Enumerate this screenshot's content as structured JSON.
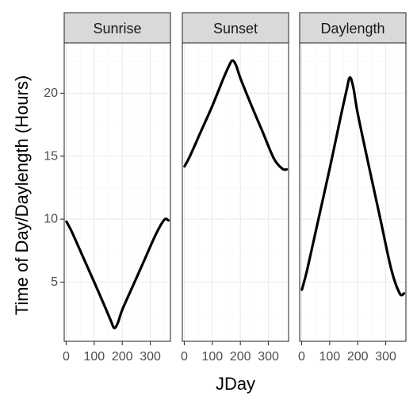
{
  "chart_data": {
    "type": "line",
    "layout": "facet",
    "xlabel": "JDay",
    "ylabel": "Time of Day/Daylength (Hours)",
    "xlim": [
      -7,
      372
    ],
    "ylim": [
      0.3,
      24
    ],
    "x_ticks": [
      0,
      100,
      200,
      300
    ],
    "x_tick_labels": [
      "0",
      "100",
      "200",
      "300"
    ],
    "y_ticks": [
      5,
      10,
      15,
      20
    ],
    "y_tick_labels": [
      "5",
      "10",
      "15",
      "20"
    ],
    "grid": true,
    "panels": [
      {
        "strip": "Sunrise",
        "series": [
          {
            "x": [
              1,
              20,
              60,
              100,
              140,
              160,
              172,
              185,
              200,
              240,
              280,
              320,
              350,
              365
            ],
            "y": [
              9.8,
              9.0,
              7.0,
              5.0,
              2.95,
              1.9,
              1.35,
              1.8,
              2.8,
              4.8,
              6.8,
              8.8,
              9.95,
              9.9
            ]
          }
        ]
      },
      {
        "strip": "Sunset",
        "series": [
          {
            "x": [
              1,
              20,
              60,
              100,
              140,
              160,
              172,
              185,
              200,
              240,
              280,
              320,
              350,
              365
            ],
            "y": [
              14.2,
              15.0,
              17.0,
              19.0,
              21.2,
              22.2,
              22.6,
              22.2,
              21.2,
              19.0,
              16.9,
              14.8,
              14.0,
              13.95
            ]
          }
        ]
      },
      {
        "strip": "Daylength",
        "series": [
          {
            "x": [
              1,
              20,
              60,
              100,
              140,
              160,
              172,
              185,
              200,
              240,
              280,
              320,
              350,
              365
            ],
            "y": [
              4.4,
              6.0,
              10.0,
              14.0,
              18.2,
              20.2,
              21.25,
              20.4,
              18.4,
              14.2,
              10.1,
              6.0,
              4.1,
              4.1
            ]
          }
        ]
      }
    ]
  }
}
